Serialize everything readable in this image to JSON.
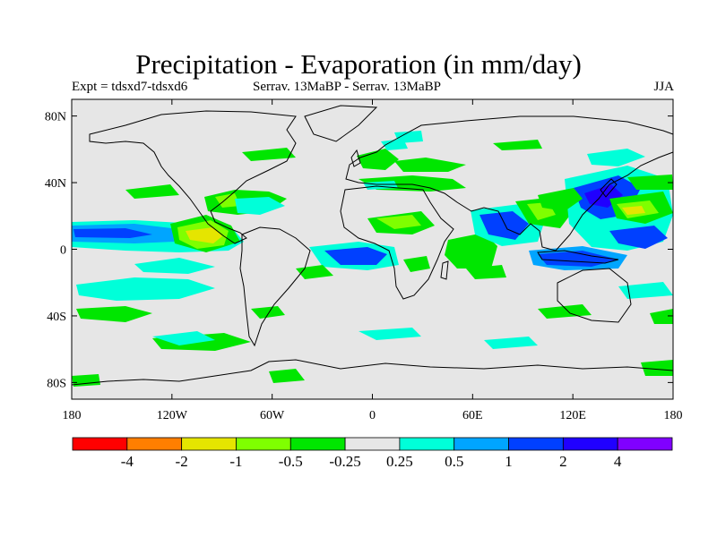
{
  "title": "Precipitation - Evaporation (in mm/day)",
  "subtitle_left": "Expt = tdsxd7-tdsxd6",
  "subtitle_center": "Serrav.   13MaBP - Serrav.   13MaBP",
  "subtitle_right": "JJA",
  "map": {
    "lat_ticks": [
      {
        "value": 80,
        "label": "80N"
      },
      {
        "value": 40,
        "label": "40N"
      },
      {
        "value": 0,
        "label": "0"
      },
      {
        "value": -40,
        "label": "40S"
      },
      {
        "value": -80,
        "label": "80S"
      }
    ],
    "lon_ticks": [
      {
        "value": -180,
        "label": "180"
      },
      {
        "value": -120,
        "label": "120W"
      },
      {
        "value": -60,
        "label": "60W"
      },
      {
        "value": 0,
        "label": "0"
      },
      {
        "value": 60,
        "label": "60E"
      },
      {
        "value": 120,
        "label": "120E"
      },
      {
        "value": 180,
        "label": "180"
      }
    ],
    "background_color": "#e6e6e6"
  },
  "colorbar": {
    "colors": [
      "#ff0000",
      "#ff7f00",
      "#e5e500",
      "#7fff00",
      "#00e600",
      "#e6e6e6",
      "#00ffd9",
      "#00a5ff",
      "#0040ff",
      "#2000ff",
      "#8000ff"
    ],
    "labels": [
      "-4",
      "-2",
      "-1",
      "-0.5",
      "-0.25",
      "0.25",
      "0.5",
      "1",
      "2",
      "4"
    ]
  }
}
